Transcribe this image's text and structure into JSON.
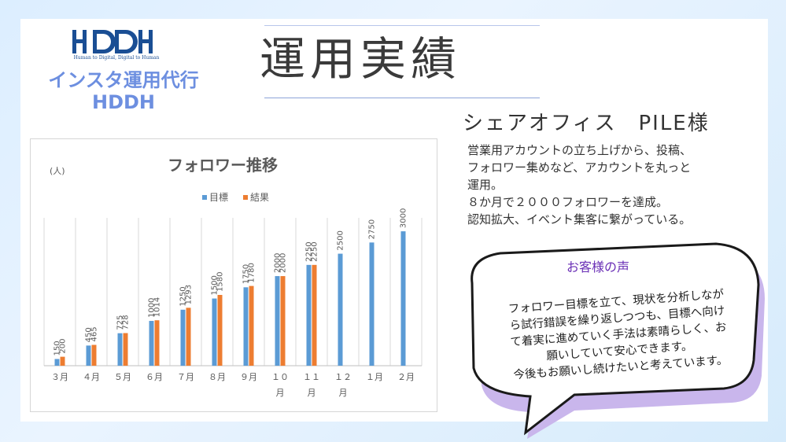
{
  "logo": {
    "wordmark": "HDDH",
    "tagline": "Human to Digital, Digital to Human"
  },
  "brand": {
    "line1": "インスタ運用代行",
    "line2": "HDDH"
  },
  "title": "運用実績",
  "company": "シェアオフィス　PILE様",
  "description": [
    "営業用アカウントの立ち上げから、投稿、",
    "フォロワー集めなど、アカウントを丸っと",
    "運用。",
    "８か月で２０００フォロワーを達成。",
    "認知拡大、イベント集客に繋がっている。"
  ],
  "voice": {
    "title": "お客様の声",
    "lines": [
      "フォロワー目標を立て、現状を分析しなが",
      "ら試行錯誤を繰り返しつつも、目標へ向け",
      "て着実に進めていく手法は素晴らしく、お",
      "願いしていて安心できます。",
      "今後もお願いし続けたいと考えています。"
    ]
  },
  "colors": {
    "target": "#5b9bd5",
    "result": "#ed7d31",
    "bubble_shadow": "#c9b6ec"
  },
  "chart_data": {
    "type": "bar",
    "title": "フォロワー推移",
    "ylabel": "(人)",
    "legend_position": "top",
    "grid": "vertical",
    "categories": [
      "3月",
      "4月",
      "5月",
      "6月",
      "7月",
      "8月",
      "9月",
      "10月",
      "11月",
      "12月",
      "1月",
      "2月"
    ],
    "category_labels": [
      [
        "３月"
      ],
      [
        "４月"
      ],
      [
        "５月"
      ],
      [
        "６月"
      ],
      [
        "７月"
      ],
      [
        "８月"
      ],
      [
        "９月"
      ],
      [
        "１０",
        "月"
      ],
      [
        "１１",
        "月"
      ],
      [
        "１２",
        "月"
      ],
      [
        "１月"
      ],
      [
        "２月"
      ]
    ],
    "series": [
      {
        "name": "目標",
        "values": [
          150,
          450,
          725,
          1000,
          1250,
          1500,
          1750,
          2000,
          2250,
          2500,
          2750,
          3000
        ]
      },
      {
        "name": "結果",
        "values": [
          200,
          465,
          728,
          1014,
          1293,
          1580,
          1780,
          2000,
          2250,
          null,
          null,
          null
        ]
      }
    ],
    "ylim": [
      0,
      3300
    ]
  }
}
